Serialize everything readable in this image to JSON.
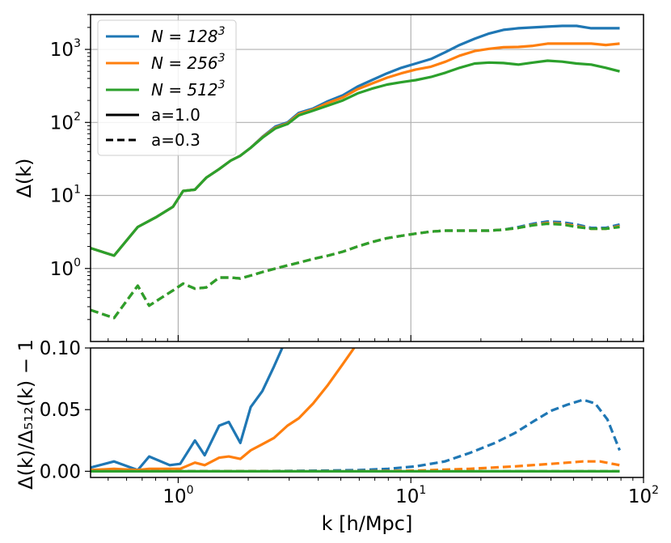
{
  "chart_data": [
    {
      "type": "line",
      "panel": "top",
      "xscale": "log",
      "yscale": "log",
      "xlim": [
        0.42,
        100
      ],
      "ylim": [
        0.1,
        3000
      ],
      "ylabel": "Δ(k)",
      "grid": true,
      "y_tick_values": [
        1,
        10,
        100,
        1000
      ],
      "y_tick_labels": [
        {
          "base": "10",
          "exp": "0"
        },
        {
          "base": "10",
          "exp": "1"
        },
        {
          "base": "10",
          "exp": "2"
        },
        {
          "base": "10",
          "exp": "3"
        }
      ],
      "legend": {
        "position": "top-left",
        "entries": [
          {
            "label_prefix": "N = 128",
            "label_sup": "3",
            "color": "#1f77b4",
            "style": "solid"
          },
          {
            "label_prefix": "N = 256",
            "label_sup": "3",
            "color": "#ff7f0e",
            "style": "solid"
          },
          {
            "label_prefix": "N = 512",
            "label_sup": "3",
            "color": "#2ca02c",
            "style": "solid"
          },
          {
            "label": "a=1.0",
            "color": "#000000",
            "style": "solid"
          },
          {
            "label": "a=0.3",
            "color": "#000000",
            "style": "dashed"
          }
        ]
      },
      "series": [
        {
          "name": "N=128^3, a=1.0",
          "color": "#1f77b4",
          "style": "solid",
          "x": [
            0.42,
            0.53,
            0.67,
            0.8,
            0.95,
            1.05,
            1.18,
            1.32,
            1.5,
            1.68,
            1.85,
            2.05,
            2.32,
            2.62,
            2.95,
            3.3,
            3.8,
            4.4,
            5.1,
            5.9,
            6.8,
            7.9,
            9.1,
            10.5,
            12.2,
            14.1,
            16.2,
            18.8,
            21.7,
            25.0,
            29.0,
            33.5,
            38.7,
            44.7,
            51.6,
            59.6,
            68.9,
            79.0
          ],
          "y": [
            1.9,
            1.5,
            3.7,
            5.0,
            7.0,
            11.5,
            12.0,
            17.5,
            23.0,
            30.0,
            35.0,
            45.0,
            65.0,
            88.0,
            100,
            135,
            155,
            195,
            235,
            310,
            380,
            470,
            560,
            640,
            740,
            920,
            1150,
            1400,
            1650,
            1850,
            1950,
            2000,
            2050,
            2100,
            2100,
            1950,
            1950,
            1950
          ]
        },
        {
          "name": "N=256^3, a=1.0",
          "color": "#ff7f0e",
          "style": "solid",
          "x": [
            0.42,
            0.53,
            0.67,
            0.8,
            0.95,
            1.05,
            1.18,
            1.32,
            1.5,
            1.68,
            1.85,
            2.05,
            2.32,
            2.62,
            2.95,
            3.3,
            3.8,
            4.4,
            5.1,
            5.9,
            6.8,
            7.9,
            9.1,
            10.5,
            12.2,
            14.1,
            16.2,
            18.8,
            21.7,
            25.0,
            29.0,
            33.5,
            38.7,
            44.7,
            51.6,
            59.6,
            68.9,
            79.0
          ],
          "y": [
            1.9,
            1.5,
            3.7,
            5.0,
            7.0,
            11.5,
            12.0,
            17.5,
            23.0,
            30.0,
            35.0,
            45.0,
            64.0,
            85.0,
            97,
            130,
            150,
            185,
            220,
            285,
            340,
            410,
            470,
            530,
            580,
            680,
            820,
            950,
            1020,
            1070,
            1080,
            1120,
            1200,
            1200,
            1200,
            1200,
            1150,
            1200
          ]
        },
        {
          "name": "N=512^3, a=1.0",
          "color": "#2ca02c",
          "style": "solid",
          "x": [
            0.42,
            0.53,
            0.67,
            0.8,
            0.95,
            1.05,
            1.18,
            1.32,
            1.5,
            1.68,
            1.85,
            2.05,
            2.32,
            2.62,
            2.95,
            3.3,
            3.8,
            4.4,
            5.1,
            5.9,
            6.8,
            7.9,
            9.1,
            10.5,
            12.2,
            14.1,
            16.2,
            18.8,
            21.7,
            25.0,
            29.0,
            33.5,
            38.7,
            44.7,
            51.6,
            59.6,
            68.9,
            79.0
          ],
          "y": [
            1.9,
            1.5,
            3.7,
            5.0,
            7.0,
            11.5,
            12.0,
            17.5,
            23.0,
            30.0,
            35.0,
            45.0,
            63.0,
            83.0,
            95,
            125,
            145,
            170,
            200,
            250,
            290,
            330,
            355,
            380,
            420,
            480,
            560,
            640,
            660,
            650,
            620,
            660,
            700,
            680,
            640,
            620,
            560,
            500
          ]
        },
        {
          "name": "N=128^3, a=0.3",
          "color": "#1f77b4",
          "style": "dashed",
          "x": [
            0.42,
            0.53,
            0.67,
            0.75,
            0.85,
            0.95,
            1.05,
            1.18,
            1.32,
            1.5,
            1.68,
            1.85,
            2.05,
            2.32,
            2.62,
            2.95,
            3.3,
            3.8,
            4.4,
            5.1,
            5.9,
            6.8,
            7.9,
            9.1,
            10.5,
            12.2,
            14.1,
            16.2,
            18.8,
            21.7,
            25.0,
            29.0,
            33.5,
            38.7,
            44.7,
            51.6,
            59.6,
            68.9,
            79.0
          ],
          "y": [
            0.27,
            0.21,
            0.58,
            0.31,
            0.4,
            0.5,
            0.62,
            0.53,
            0.55,
            0.75,
            0.75,
            0.73,
            0.8,
            0.9,
            1.0,
            1.1,
            1.2,
            1.35,
            1.5,
            1.7,
            2.0,
            2.3,
            2.6,
            2.8,
            3.0,
            3.2,
            3.3,
            3.3,
            3.3,
            3.3,
            3.4,
            3.7,
            4.1,
            4.4,
            4.3,
            4.0,
            3.6,
            3.6,
            4.0
          ]
        },
        {
          "name": "N=256^3, a=0.3",
          "color": "#ff7f0e",
          "style": "dashed",
          "x": [
            0.42,
            0.53,
            0.67,
            0.75,
            0.85,
            0.95,
            1.05,
            1.18,
            1.32,
            1.5,
            1.68,
            1.85,
            2.05,
            2.32,
            2.62,
            2.95,
            3.3,
            3.8,
            4.4,
            5.1,
            5.9,
            6.8,
            7.9,
            9.1,
            10.5,
            12.2,
            14.1,
            16.2,
            18.8,
            21.7,
            25.0,
            29.0,
            33.5,
            38.7,
            44.7,
            51.6,
            59.6,
            68.9,
            79.0
          ],
          "y": [
            0.27,
            0.21,
            0.58,
            0.31,
            0.4,
            0.5,
            0.62,
            0.53,
            0.55,
            0.75,
            0.75,
            0.73,
            0.8,
            0.9,
            1.0,
            1.1,
            1.2,
            1.35,
            1.5,
            1.7,
            2.0,
            2.3,
            2.6,
            2.8,
            3.0,
            3.2,
            3.3,
            3.3,
            3.3,
            3.3,
            3.4,
            3.6,
            3.95,
            4.2,
            4.1,
            3.8,
            3.5,
            3.5,
            3.8
          ]
        },
        {
          "name": "N=512^3, a=0.3",
          "color": "#2ca02c",
          "style": "dashed",
          "x": [
            0.42,
            0.53,
            0.67,
            0.75,
            0.85,
            0.95,
            1.05,
            1.18,
            1.32,
            1.5,
            1.68,
            1.85,
            2.05,
            2.32,
            2.62,
            2.95,
            3.3,
            3.8,
            4.4,
            5.1,
            5.9,
            6.8,
            7.9,
            9.1,
            10.5,
            12.2,
            14.1,
            16.2,
            18.8,
            21.7,
            25.0,
            29.0,
            33.5,
            38.7,
            44.7,
            51.6,
            59.6,
            68.9,
            79.0
          ],
          "y": [
            0.27,
            0.21,
            0.58,
            0.31,
            0.4,
            0.5,
            0.62,
            0.53,
            0.55,
            0.75,
            0.75,
            0.73,
            0.8,
            0.9,
            1.0,
            1.1,
            1.2,
            1.35,
            1.5,
            1.7,
            2.0,
            2.3,
            2.6,
            2.8,
            3.0,
            3.2,
            3.3,
            3.3,
            3.3,
            3.3,
            3.4,
            3.6,
            3.9,
            4.1,
            4.0,
            3.7,
            3.5,
            3.5,
            3.7
          ]
        }
      ]
    },
    {
      "type": "line",
      "panel": "bottom",
      "xscale": "log",
      "yscale": "linear",
      "xlim": [
        0.42,
        100
      ],
      "ylim": [
        -0.005,
        0.1
      ],
      "xlabel": "k [h/Mpc]",
      "ylabel": "Δ(k)/Δ₅₁₂(k) − 1",
      "grid": false,
      "y_tick_values": [
        0.0,
        0.05,
        0.1
      ],
      "y_tick_labels": [
        "0.00",
        "0.05",
        "0.10"
      ],
      "x_tick_values": [
        1,
        10,
        100
      ],
      "x_tick_labels": [
        {
          "base": "10",
          "exp": "0"
        },
        {
          "base": "10",
          "exp": "1"
        },
        {
          "base": "10",
          "exp": "2"
        }
      ],
      "series": [
        {
          "name": "N=128^3, a=1.0",
          "color": "#1f77b4",
          "style": "solid",
          "x": [
            0.42,
            0.53,
            0.67,
            0.75,
            0.92,
            1.02,
            1.18,
            1.3,
            1.5,
            1.65,
            1.85,
            2.05,
            2.3,
            2.58,
            2.8
          ],
          "y": [
            0.003,
            0.008,
            0.001,
            0.012,
            0.005,
            0.006,
            0.025,
            0.013,
            0.037,
            0.04,
            0.023,
            0.052,
            0.065,
            0.085,
            0.1
          ]
        },
        {
          "name": "N=256^3, a=1.0",
          "color": "#ff7f0e",
          "style": "solid",
          "x": [
            0.42,
            0.53,
            0.67,
            0.75,
            0.92,
            1.02,
            1.18,
            1.3,
            1.5,
            1.65,
            1.85,
            2.05,
            2.3,
            2.58,
            2.95,
            3.3,
            3.8,
            4.4,
            5.1,
            5.7
          ],
          "y": [
            0.001,
            0.002,
            0.001,
            0.002,
            0.002,
            0.002,
            0.007,
            0.005,
            0.011,
            0.012,
            0.01,
            0.017,
            0.022,
            0.027,
            0.037,
            0.043,
            0.055,
            0.07,
            0.087,
            0.1
          ]
        },
        {
          "name": "N=512^3, a=1.0",
          "color": "#2ca02c",
          "style": "solid",
          "x": [
            0.42,
            79.0
          ],
          "y": [
            0.0,
            0.0
          ]
        },
        {
          "name": "N=128^3, a=0.3",
          "color": "#1f77b4",
          "style": "dashed",
          "x": [
            0.42,
            1.0,
            2.0,
            4.0,
            6.0,
            8.0,
            10.5,
            14.0,
            18.0,
            23.0,
            28.0,
            34.0,
            40.0,
            47.0,
            55.0,
            62.0,
            70.0,
            79.0
          ],
          "y": [
            0.0,
            0.0,
            0.0,
            0.0005,
            0.001,
            0.002,
            0.004,
            0.008,
            0.015,
            0.023,
            0.031,
            0.041,
            0.049,
            0.054,
            0.058,
            0.055,
            0.042,
            0.017
          ]
        },
        {
          "name": "N=256^3, a=0.3",
          "color": "#ff7f0e",
          "style": "dashed",
          "x": [
            0.42,
            1.0,
            2.0,
            5.0,
            10.5,
            18.0,
            28.0,
            40.0,
            55.0,
            65.0,
            79.0
          ],
          "y": [
            0.0,
            0.0,
            0.0,
            0.0,
            0.0005,
            0.002,
            0.004,
            0.006,
            0.008,
            0.008,
            0.005
          ]
        },
        {
          "name": "N=512^3, a=0.3",
          "color": "#2ca02c",
          "style": "dashed",
          "x": [
            0.42,
            79.0
          ],
          "y": [
            0.0,
            0.0
          ]
        }
      ]
    }
  ]
}
